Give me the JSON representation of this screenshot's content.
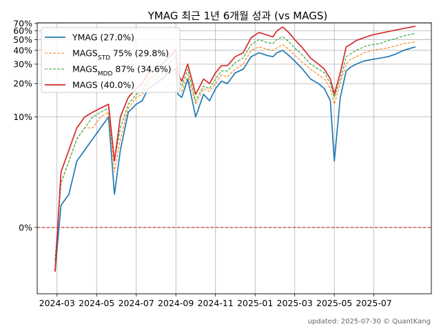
{
  "chart_data": {
    "type": "line",
    "title": "YMAG 최근 1년 6개월 성과 (vs MAGS)",
    "footer": "updated: 2025-07-30 © QuantKang",
    "xlabel": "",
    "ylabel": "",
    "grid": true,
    "legend_position": "top-left",
    "x_ticks": [
      "2024-03",
      "2024-05",
      "2024-07",
      "2024-09",
      "2024-11",
      "2025-01",
      "2025-03",
      "2025-05",
      "2025-07"
    ],
    "x_tick_months": [
      1,
      3,
      5,
      7,
      9,
      11,
      13,
      15,
      17
    ],
    "x_range_months": [
      0.0,
      19.9
    ],
    "y_ticks": [
      {
        "label": "0%",
        "value": 0
      },
      {
        "label": "10%",
        "value": 10
      },
      {
        "label": "20%",
        "value": 20
      },
      {
        "label": "30%",
        "value": 30
      },
      {
        "label": "40%",
        "value": 40
      },
      {
        "label": "50%",
        "value": 50
      },
      {
        "label": "60%",
        "value": 60
      },
      {
        "label": "70%",
        "value": 70
      }
    ],
    "ylim": [
      -6,
      71
    ],
    "y_scale": "symlog",
    "reference_line": {
      "value": 0,
      "color": "#d62728",
      "style": "dashed"
    },
    "x_month_points": [
      0.9,
      1.2,
      1.6,
      2.0,
      2.4,
      2.8,
      3.2,
      3.6,
      3.9,
      4.2,
      4.6,
      5.0,
      5.3,
      5.6,
      6.0,
      6.3,
      6.7,
      7.0,
      7.1,
      7.3,
      7.6,
      8.0,
      8.4,
      8.7,
      9.0,
      9.3,
      9.6,
      10.0,
      10.4,
      10.8,
      11.2,
      11.6,
      11.9,
      12.1,
      12.4,
      12.7,
      13.0,
      13.4,
      13.8,
      14.2,
      14.5,
      14.8,
      15.0,
      15.3,
      15.6,
      15.8,
      16.1,
      16.5,
      16.9,
      17.3,
      17.7,
      18.1,
      18.5,
      18.9,
      19.1
    ],
    "series": [
      {
        "name": "YMAG (27.0%)",
        "color": "#1f77b4",
        "style": "solid",
        "values": [
          -4,
          2,
          3,
          6,
          7,
          8,
          9,
          10,
          3,
          7,
          11,
          13,
          14,
          18,
          20,
          22,
          26,
          27,
          16,
          15,
          22,
          10,
          16,
          14,
          18,
          21,
          20,
          25,
          27,
          35,
          38,
          36,
          35,
          38,
          40,
          36,
          32,
          27,
          22,
          20,
          18,
          14,
          6,
          15,
          26,
          28,
          30,
          32,
          33,
          34,
          35,
          37,
          40,
          42,
          43
        ]
      },
      {
        "name": "MAGS<tspan baseline-shift='sub' font-size='9'>STD</tspan> 75% (29.8%)",
        "label": "MAGSSTD 75% (29.8%)",
        "color": "#ff7f0e",
        "style": "dashed",
        "values": [
          -3,
          4,
          6,
          8,
          9,
          9,
          10,
          11,
          5,
          8,
          12,
          15,
          16,
          20,
          22,
          24,
          27,
          30,
          19,
          17,
          24,
          13,
          18,
          17,
          20,
          24,
          23,
          27,
          30,
          40,
          43,
          41,
          40,
          42,
          45,
          41,
          36,
          31,
          27,
          24,
          22,
          18,
          13,
          20,
          30,
          33,
          35,
          38,
          40,
          41,
          42,
          44,
          46,
          47,
          48
        ]
      },
      {
        "name": "MAGS<tspan baseline-shift='sub' font-size='9'>MDD</tspan> 87% (34.6%)",
        "label": "MAGSMDD 87% (34.6%)",
        "color": "#2ca02c",
        "style": "dashed",
        "values": [
          -3,
          4,
          6,
          8,
          9,
          10,
          11,
          12,
          6,
          9,
          13,
          16,
          17,
          22,
          24,
          27,
          31,
          35,
          22,
          19,
          27,
          14,
          19,
          18,
          22,
          26,
          26,
          31,
          34,
          45,
          50,
          47,
          46,
          50,
          53,
          48,
          42,
          36,
          30,
          27,
          25,
          20,
          15,
          22,
          35,
          37,
          40,
          43,
          45,
          46,
          49,
          51,
          54,
          56,
          57
        ]
      },
      {
        "name": "MAGS (40.0%)",
        "color": "#d62728",
        "style": "solid",
        "values": [
          -4,
          5,
          7,
          9,
          10,
          11,
          12,
          13,
          6,
          10,
          15,
          18,
          20,
          25,
          27,
          30,
          35,
          41,
          25,
          21,
          30,
          16,
          22,
          20,
          25,
          29,
          29,
          35,
          38,
          52,
          58,
          55,
          53,
          60,
          65,
          58,
          50,
          42,
          34,
          30,
          27,
          22,
          16,
          25,
          43,
          45,
          49,
          52,
          55,
          57,
          59,
          61,
          63,
          65,
          66
        ]
      }
    ]
  }
}
